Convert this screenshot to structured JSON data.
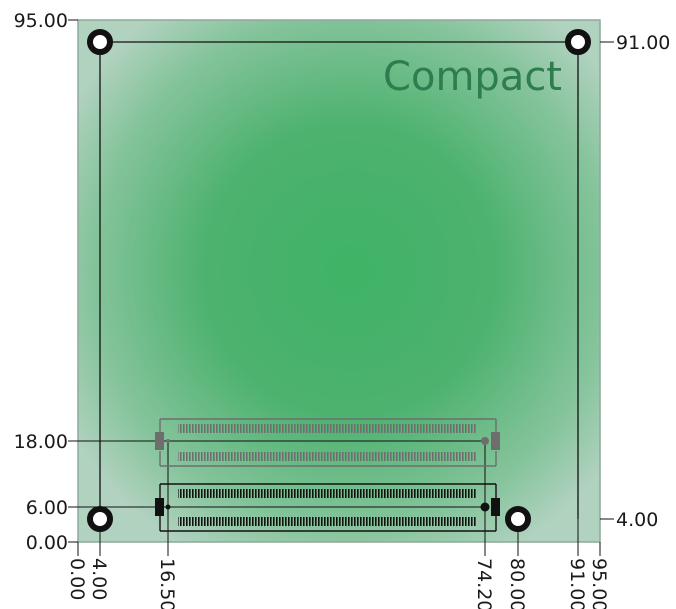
{
  "title": "Compact",
  "left_labels": [
    "95.00",
    "18.00",
    "6.00",
    "0.00"
  ],
  "right_labels": [
    "91.00",
    "4.00"
  ],
  "bottom_labels": [
    "0.00",
    "4.00",
    "16.50",
    "74.20",
    "80.00",
    "91.00",
    "95.00"
  ],
  "colors": {
    "board_center": "#3fb366",
    "board_edge": "#a9cbb9",
    "title": "#2e7d4f",
    "top_connector": "#6e6e6e",
    "bottom_connector": "#111111",
    "lines": "#111111"
  },
  "icons": [
    "mounting-hole-icon",
    "connector-icon"
  ]
}
